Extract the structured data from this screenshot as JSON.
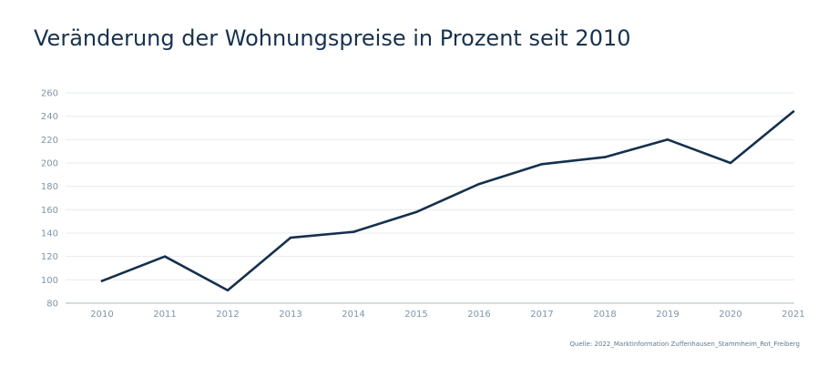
{
  "title": "Veränderung der Wohnungspreise in Prozent seit 2010",
  "source": "Quelle: 2022_Marktinformation Zuffenhausen_Stammheim_Rot_Freiberg",
  "colors": {
    "line": "#15304c",
    "grid": "#e6ebef",
    "axis": "#a8b8c6",
    "text": "#7f95a8"
  },
  "chart_data": {
    "type": "line",
    "title": "Veränderung der Wohnungspreise in Prozent seit 2010",
    "xlabel": "",
    "ylabel": "",
    "x": [
      "2010",
      "2011",
      "2012",
      "2013",
      "2014",
      "2015",
      "2016",
      "2017",
      "2018",
      "2019",
      "2020",
      "2021"
    ],
    "series": [
      {
        "values": [
          99,
          120,
          91,
          136,
          141,
          158,
          182,
          199,
          205,
          220,
          200,
          244
        ]
      }
    ],
    "ylim": [
      80,
      260
    ],
    "yticks": [
      80,
      100,
      120,
      140,
      160,
      180,
      200,
      220,
      240,
      260
    ],
    "grid": true,
    "legend": "none"
  }
}
